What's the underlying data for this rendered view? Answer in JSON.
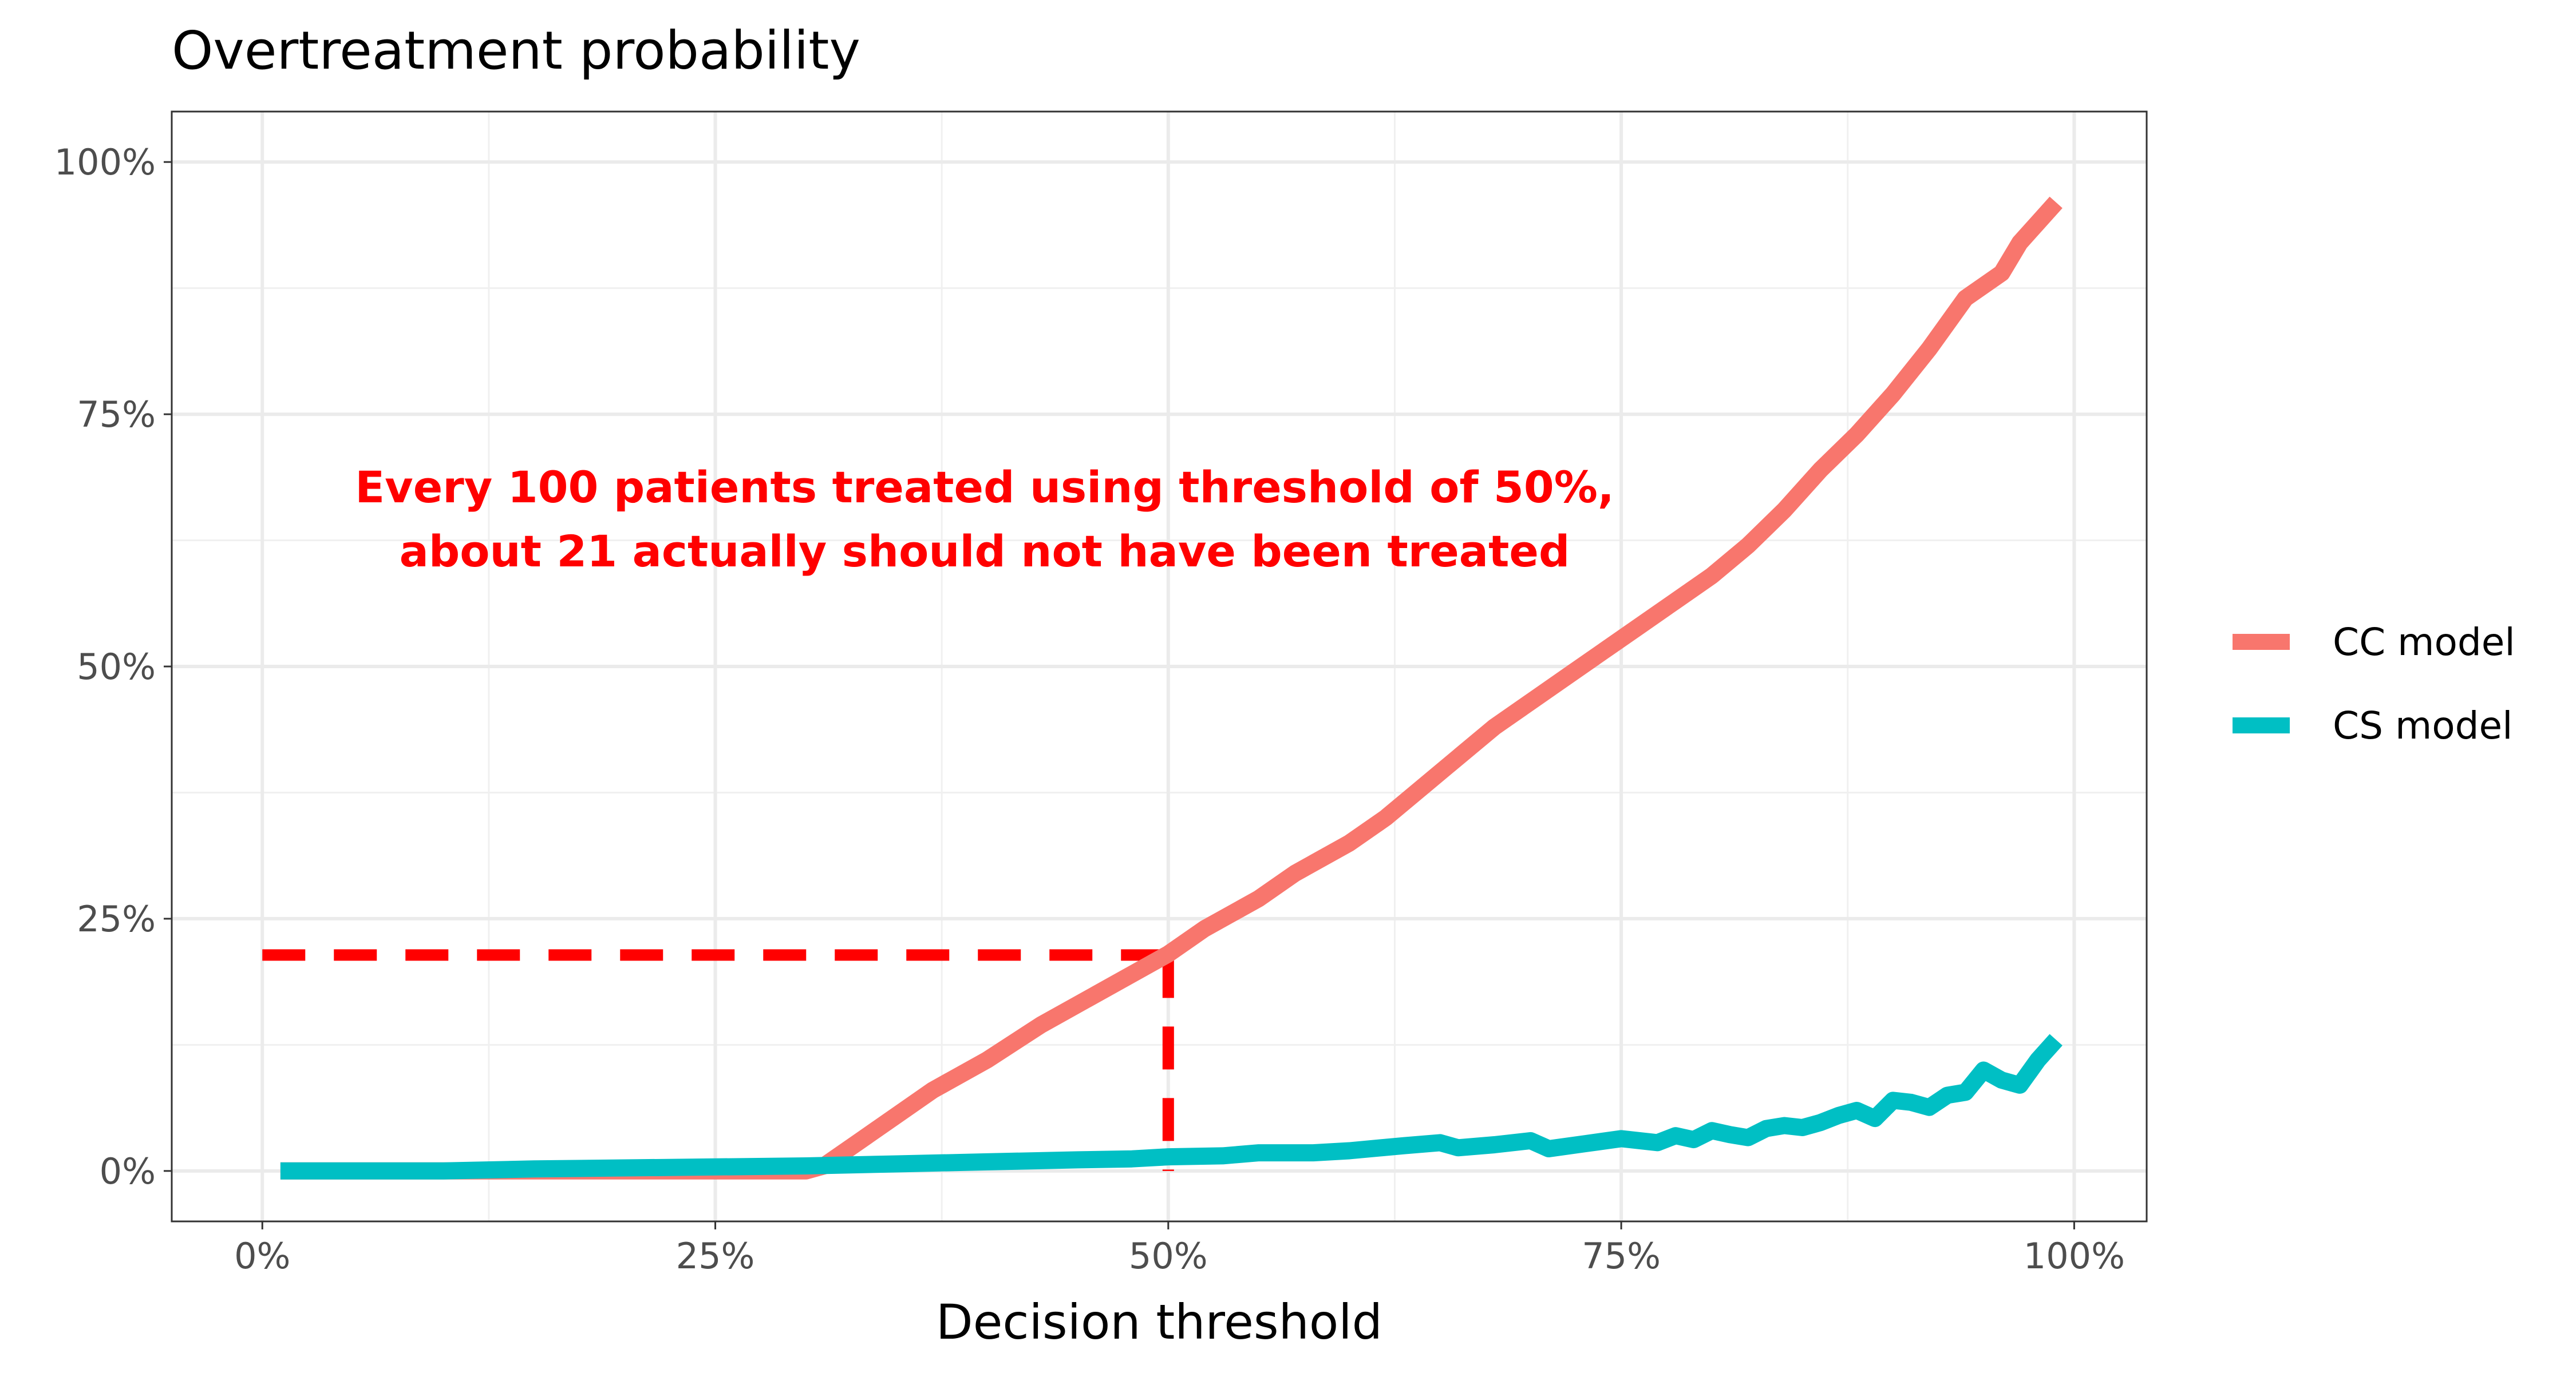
{
  "chart_data": {
    "type": "line",
    "title": "Overtreatment probability",
    "xlabel": "Decision threshold",
    "ylabel": "",
    "xlim": [
      -0.05,
      1.04
    ],
    "ylim": [
      -0.05,
      1.05
    ],
    "grid": true,
    "legend_position": "right",
    "x_ticks": [
      {
        "value": 0,
        "label": "0%"
      },
      {
        "value": 0.25,
        "label": "25%"
      },
      {
        "value": 0.5,
        "label": "50%"
      },
      {
        "value": 0.75,
        "label": "75%"
      },
      {
        "value": 1.0,
        "label": "100%"
      }
    ],
    "y_ticks": [
      {
        "value": 0,
        "label": "0%"
      },
      {
        "value": 0.25,
        "label": "25%"
      },
      {
        "value": 0.5,
        "label": "50%"
      },
      {
        "value": 0.75,
        "label": "75%"
      },
      {
        "value": 1.0,
        "label": "100%"
      }
    ],
    "series": [
      {
        "name": "CC model",
        "color": "#F8766D",
        "x": [
          0.01,
          0.05,
          0.1,
          0.15,
          0.2,
          0.25,
          0.3,
          0.31,
          0.33,
          0.35,
          0.37,
          0.4,
          0.43,
          0.45,
          0.47,
          0.5,
          0.52,
          0.55,
          0.57,
          0.6,
          0.62,
          0.64,
          0.66,
          0.68,
          0.7,
          0.72,
          0.74,
          0.76,
          0.78,
          0.8,
          0.82,
          0.84,
          0.86,
          0.88,
          0.9,
          0.92,
          0.94,
          0.96,
          0.97,
          0.98,
          0.99
        ],
        "y": [
          0.0,
          0.0,
          0.0,
          0.0,
          0.0,
          0.0,
          0.0,
          0.005,
          0.03,
          0.055,
          0.08,
          0.11,
          0.145,
          0.165,
          0.185,
          0.215,
          0.24,
          0.27,
          0.295,
          0.325,
          0.35,
          0.38,
          0.41,
          0.44,
          0.465,
          0.49,
          0.515,
          0.54,
          0.565,
          0.59,
          0.62,
          0.655,
          0.695,
          0.73,
          0.77,
          0.815,
          0.865,
          0.89,
          0.92,
          0.94,
          0.96
        ]
      },
      {
        "name": "CS model",
        "color": "#00BFC4",
        "x": [
          0.01,
          0.05,
          0.1,
          0.15,
          0.2,
          0.25,
          0.3,
          0.35,
          0.4,
          0.45,
          0.48,
          0.5,
          0.53,
          0.55,
          0.58,
          0.6,
          0.63,
          0.65,
          0.66,
          0.68,
          0.7,
          0.71,
          0.73,
          0.75,
          0.77,
          0.78,
          0.79,
          0.8,
          0.81,
          0.82,
          0.83,
          0.84,
          0.85,
          0.86,
          0.87,
          0.88,
          0.89,
          0.9,
          0.91,
          0.92,
          0.93,
          0.94,
          0.95,
          0.96,
          0.97,
          0.98,
          0.99
        ],
        "y": [
          0.0,
          0.0,
          0.0,
          0.002,
          0.003,
          0.004,
          0.005,
          0.007,
          0.009,
          0.011,
          0.012,
          0.014,
          0.015,
          0.018,
          0.018,
          0.02,
          0.025,
          0.028,
          0.023,
          0.026,
          0.03,
          0.022,
          0.027,
          0.032,
          0.028,
          0.035,
          0.031,
          0.04,
          0.036,
          0.033,
          0.042,
          0.045,
          0.043,
          0.048,
          0.055,
          0.06,
          0.052,
          0.07,
          0.068,
          0.063,
          0.075,
          0.078,
          0.1,
          0.09,
          0.085,
          0.11,
          0.13
        ]
      }
    ],
    "annotation": {
      "lines": [
        "Every 100 patients treated using threshold of 50%,",
        "about 21 actually should not have been treated"
      ],
      "color": "#FF0000"
    },
    "reference_lines": {
      "color": "#FF0000",
      "threshold_x": 0.5,
      "value_y": 0.214
    }
  }
}
